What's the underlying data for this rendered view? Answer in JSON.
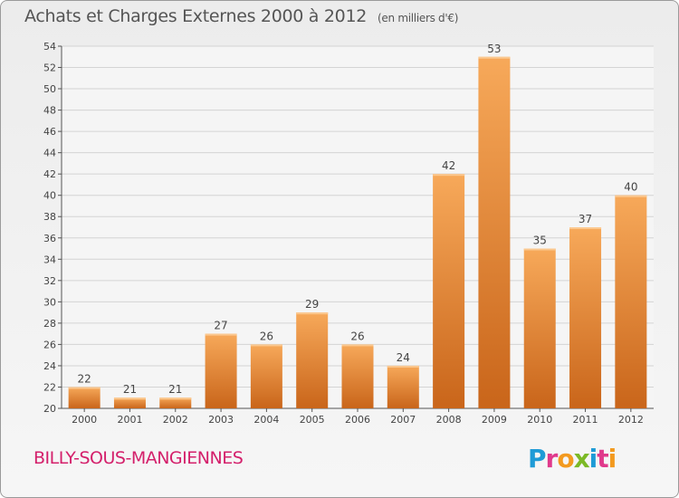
{
  "header": {
    "title": "Achats et Charges Externes 2000 à 2012",
    "subtitle": "(en milliers d'€)"
  },
  "footer": {
    "town": "BILLY-SOUS-MANGIENNES",
    "logo": "Proxiti"
  },
  "logo_letters": [
    {
      "char": "P",
      "color": "#1f9bd6"
    },
    {
      "char": "r",
      "color": "#e03a8c"
    },
    {
      "char": "o",
      "color": "#f39a1f"
    },
    {
      "char": "x",
      "color": "#7cb926"
    },
    {
      "char": "i",
      "color": "#1f9bd6"
    },
    {
      "char": "t",
      "color": "#e03a8c"
    },
    {
      "char": "i",
      "color": "#f39a1f"
    }
  ],
  "colors": {
    "bar_light": "#f7a95a",
    "bar_dark": "#c9651a",
    "grid": "#d4d4d4",
    "axis": "#555555",
    "title": "#555555",
    "town": "#d4206b"
  },
  "chart_data": {
    "type": "bar",
    "categories": [
      "2000",
      "2001",
      "2002",
      "2003",
      "2004",
      "2005",
      "2006",
      "2007",
      "2008",
      "2009",
      "2010",
      "2011",
      "2012"
    ],
    "values": [
      22,
      21,
      21,
      27,
      26,
      29,
      26,
      24,
      42,
      53,
      35,
      37,
      40
    ],
    "ylim": [
      20,
      54
    ],
    "yticks": [
      20,
      22,
      24,
      26,
      28,
      30,
      32,
      34,
      36,
      38,
      40,
      42,
      44,
      46,
      48,
      50,
      52,
      54
    ],
    "grid": true,
    "data_labels": true
  }
}
